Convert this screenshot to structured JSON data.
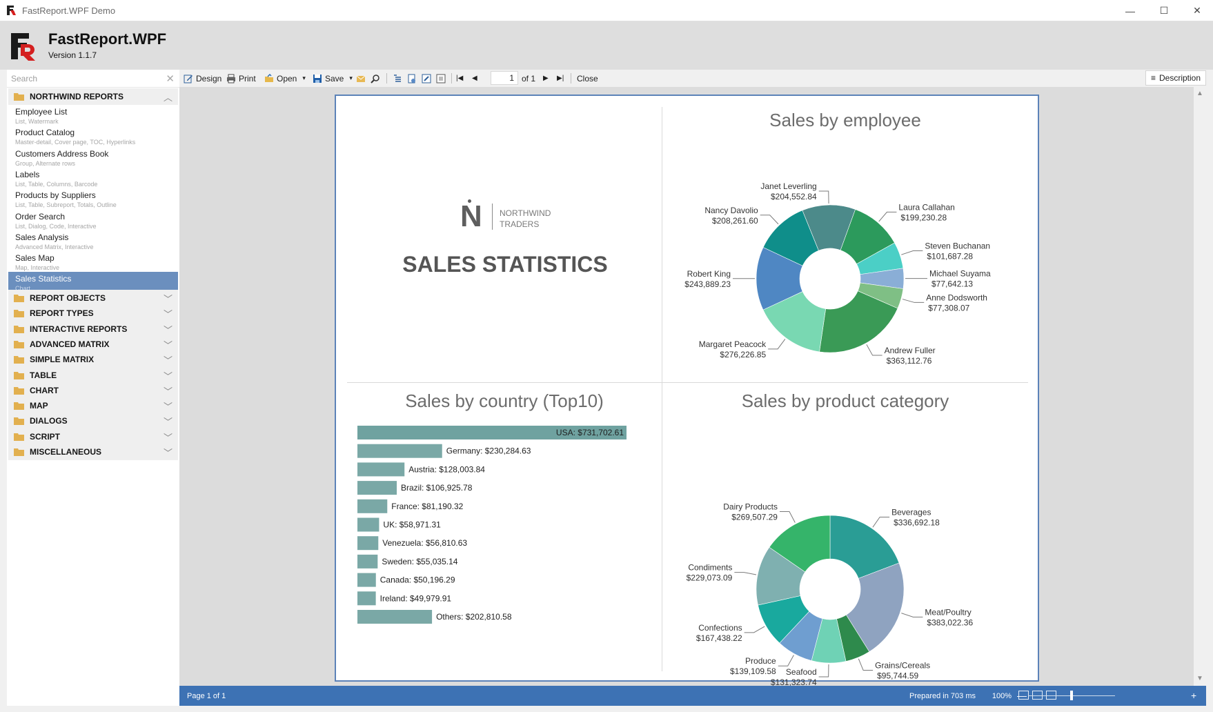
{
  "window": {
    "title": "FastReport.WPF Demo",
    "minimize_glyph": "—",
    "maximize_glyph": "☐",
    "close_glyph": "✕",
    "logo_icon": "fastreport-logo-icon"
  },
  "header": {
    "product": "FastReport.WPF",
    "version": "Version 1.1.7"
  },
  "sidebar": {
    "search_placeholder": "Search",
    "search_clear": "✕",
    "expanded_category": {
      "label": "NORTHWIND REPORTS",
      "chevron": "︿"
    },
    "items": [
      {
        "name": "Employee List",
        "tags": "List, Watermark"
      },
      {
        "name": "Product Catalog",
        "tags": "Master-detail, Cover page, TOC, Hyperlinks"
      },
      {
        "name": "Customers Address Book",
        "tags": "Group, Alternate rows"
      },
      {
        "name": "Labels",
        "tags": "List, Table, Columns, Barcode"
      },
      {
        "name": "Products by Suppliers",
        "tags": "List, Table, Subreport, Totals, Outline"
      },
      {
        "name": "Order Search",
        "tags": "List, Dialog, Code, Interactive"
      },
      {
        "name": "Sales Analysis",
        "tags": "Advanced Matrix, Interactive"
      },
      {
        "name": "Sales Map",
        "tags": "Map, Interactive"
      },
      {
        "name": "Sales Statistics",
        "tags": "Chart",
        "selected": true
      }
    ],
    "categories": [
      {
        "label": "REPORT OBJECTS",
        "chevron": "﹀"
      },
      {
        "label": "REPORT TYPES",
        "chevron": "﹀"
      },
      {
        "label": "INTERACTIVE REPORTS",
        "chevron": "﹀"
      },
      {
        "label": "ADVANCED MATRIX",
        "chevron": "﹀"
      },
      {
        "label": "SIMPLE MATRIX",
        "chevron": "﹀"
      },
      {
        "label": "TABLE",
        "chevron": "﹀"
      },
      {
        "label": "CHART",
        "chevron": "﹀"
      },
      {
        "label": "MAP",
        "chevron": "﹀"
      },
      {
        "label": "DIALOGS",
        "chevron": "﹀"
      },
      {
        "label": "SCRIPT",
        "chevron": "﹀"
      },
      {
        "label": "MISCELLANEOUS",
        "chevron": "﹀"
      }
    ]
  },
  "toolbar": {
    "design": "Design",
    "print": "Print",
    "open": "Open",
    "save": "Save",
    "dropdown_glyph": "▾",
    "first_glyph": "|◀",
    "prev_glyph": "◀",
    "next_glyph": "▶",
    "last_glyph": "▶|",
    "page_number": "1",
    "page_of": "of 1",
    "close": "Close",
    "description": "Description",
    "description_glyph": "≡"
  },
  "report": {
    "brand_letter": "N",
    "brand_line1": "NORTHWIND",
    "brand_line2": "TRADERS",
    "title": "SALES STATISTICS"
  },
  "chart_data": [
    {
      "type": "pie",
      "title": "Sales by employee",
      "donut": true,
      "slices": [
        {
          "label": "Laura Callahan",
          "value": 199230.28,
          "text": "$199,230.28",
          "color": "#2c9a5c"
        },
        {
          "label": "Steven Buchanan",
          "value": 101687.28,
          "text": "$101,687.28",
          "color": "#4bcfc6"
        },
        {
          "label": "Michael Suyama",
          "value": 77642.13,
          "text": "$77,642.13",
          "color": "#8aaed6"
        },
        {
          "label": "Anne Dodsworth",
          "value": 77308.07,
          "text": "$77,308.07",
          "color": "#7fbf85"
        },
        {
          "label": "Andrew Fuller",
          "value": 363112.76,
          "text": "$363,112.76",
          "color": "#3a9a56"
        },
        {
          "label": "Margaret Peacock",
          "value": 276226.85,
          "text": "$276,226.85",
          "color": "#79d8b2"
        },
        {
          "label": "Robert King",
          "value": 243889.23,
          "text": "$243,889.23",
          "color": "#4f87c3"
        },
        {
          "label": "Nancy Davolio",
          "value": 208261.6,
          "text": "$208,261.60",
          "color": "#0f8e8a"
        },
        {
          "label": "Janet Leverling",
          "value": 204552.84,
          "text": "$204,552.84",
          "color": "#4c8a8a"
        }
      ]
    },
    {
      "type": "bar",
      "orientation": "horizontal",
      "title": "Sales by country (Top10)",
      "categories": [
        "USA",
        "Germany",
        "Austria",
        "Brazil",
        "France",
        "UK",
        "Venezuela",
        "Sweden",
        "Canada",
        "Ireland",
        "Others"
      ],
      "values": [
        731702.61,
        230284.63,
        128003.84,
        106925.78,
        81190.32,
        58971.31,
        56810.63,
        55035.14,
        50196.29,
        49979.91,
        202810.58
      ],
      "value_labels": [
        "$731,702.61",
        "$230,284.63",
        "$128,003.84",
        "$106,925.78",
        "$81,190.32",
        "$58,971.31",
        "$56,810.63",
        "$55,035.14",
        "$50,196.29",
        "$49,979.91",
        "$202,810.58"
      ],
      "bar_color": "#7aa8a6",
      "top_bar_color": "#6fa2a0"
    },
    {
      "type": "pie",
      "title": "Sales by product category",
      "donut": true,
      "slices": [
        {
          "label": "Beverages",
          "value": 336692.18,
          "text": "$336,692.18",
          "color": "#2a9d95"
        },
        {
          "label": "Meat/Poultry",
          "value": 383022.36,
          "text": "$383,022.36",
          "color": "#8fa3c0"
        },
        {
          "label": "Grains/Cereals",
          "value": 95744.59,
          "text": "$95,744.59",
          "color": "#2e8a4c"
        },
        {
          "label": "Seafood",
          "value": 131323.74,
          "text": "$131,323.74",
          "color": "#6fd2b5"
        },
        {
          "label": "Produce",
          "value": 139109.58,
          "text": "$139,109.58",
          "color": "#6f9ed0"
        },
        {
          "label": "Confections",
          "value": 167438.22,
          "text": "$167,438.22",
          "color": "#19a99e"
        },
        {
          "label": "Condiments",
          "value": 229073.09,
          "text": "$229,073.09",
          "color": "#7fb0b0"
        },
        {
          "label": "Dairy Products",
          "value": 269507.29,
          "text": "$269,507.29",
          "color": "#35b46a"
        }
      ]
    }
  ],
  "status": {
    "page": "Page 1 of 1",
    "prepared": "Prepared in 703 ms",
    "zoom": "100%",
    "zoom_out": "—",
    "zoom_in": "+"
  },
  "scroll": {
    "up": "▲",
    "down": "▼"
  }
}
